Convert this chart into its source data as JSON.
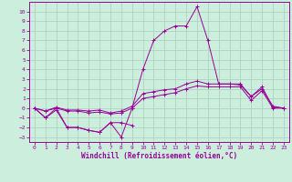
{
  "xlabel": "Windchill (Refroidissement éolien,°C)",
  "background_color": "#cceedd",
  "grid_color": "#aaccbb",
  "line_color": "#990099",
  "x_values": [
    0,
    1,
    2,
    3,
    4,
    5,
    6,
    7,
    8,
    9,
    10,
    11,
    12,
    13,
    14,
    15,
    16,
    17,
    18,
    19,
    20,
    21,
    22,
    23
  ],
  "series_spike": [
    0,
    -1,
    0,
    -2,
    -2,
    -2.3,
    -2.5,
    -1.5,
    -3.0,
    0.0,
    4.0,
    7.0,
    8.0,
    8.5,
    8.5,
    10.5,
    7.0,
    2.5,
    2.5,
    2.5,
    1.2,
    2.2,
    0.1,
    0.0
  ],
  "series_upper": [
    0,
    -0.3,
    0.1,
    -0.2,
    -0.2,
    -0.3,
    -0.2,
    -0.5,
    -0.3,
    0.2,
    1.5,
    1.7,
    1.9,
    2.0,
    2.5,
    2.8,
    2.5,
    2.5,
    2.5,
    2.4,
    1.2,
    2.0,
    0.2,
    0.0
  ],
  "series_mid": [
    0,
    -0.3,
    0.0,
    -0.3,
    -0.3,
    -0.5,
    -0.4,
    -0.6,
    -0.5,
    0.0,
    1.0,
    1.2,
    1.4,
    1.6,
    2.0,
    2.3,
    2.2,
    2.2,
    2.2,
    2.2,
    0.8,
    1.8,
    0.0,
    0.0
  ],
  "series_lower": [
    0,
    -1.0,
    -0.2,
    -2.0,
    -2.0,
    -2.3,
    -2.5,
    -1.5,
    -1.5,
    -1.8,
    null,
    null,
    null,
    null,
    null,
    null,
    null,
    null,
    null,
    null,
    null,
    null,
    null,
    null
  ],
  "ylim": [
    -3.5,
    11.0
  ],
  "xlim": [
    -0.5,
    23.5
  ],
  "yticks": [
    -3,
    -2,
    -1,
    0,
    1,
    2,
    3,
    4,
    5,
    6,
    7,
    8,
    9,
    10
  ],
  "xticks": [
    0,
    1,
    2,
    3,
    4,
    5,
    6,
    7,
    8,
    9,
    10,
    11,
    12,
    13,
    14,
    15,
    16,
    17,
    18,
    19,
    20,
    21,
    22,
    23
  ]
}
